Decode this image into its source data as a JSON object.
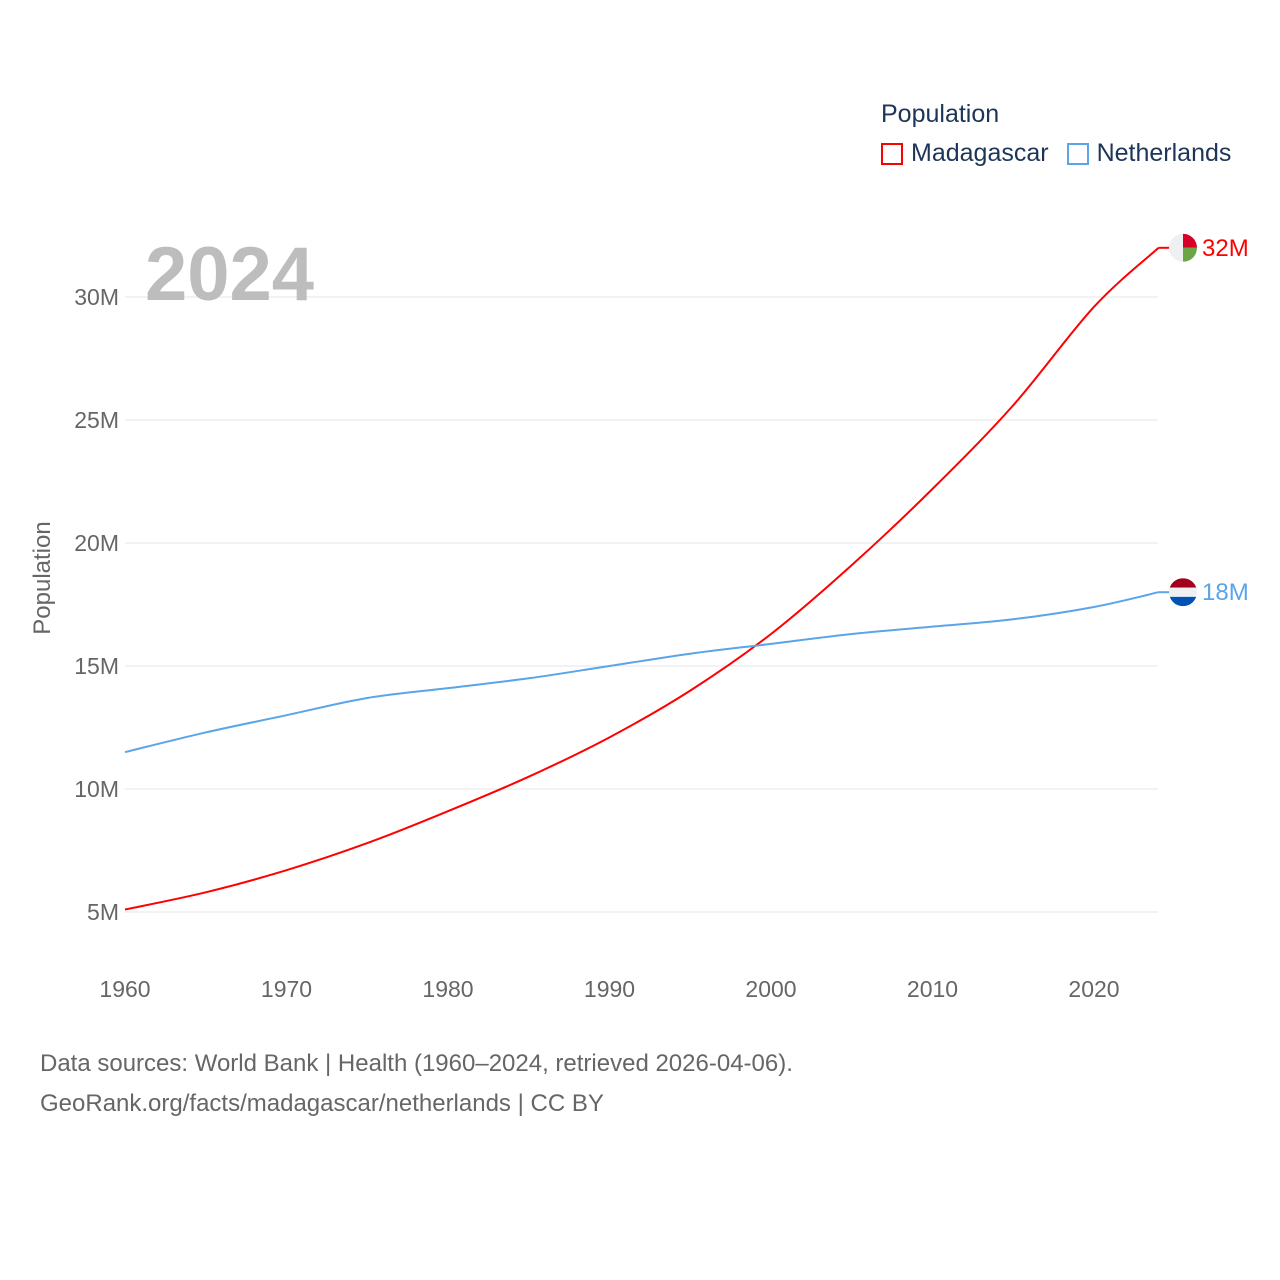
{
  "chart_data": {
    "type": "line",
    "title": "Population",
    "ylabel": "Population",
    "xlabel": "",
    "year_label": "2024",
    "xlim": [
      1960,
      2024
    ],
    "ylim": [
      3000000,
      33000000
    ],
    "x_ticks": [
      1960,
      1970,
      1980,
      1990,
      2000,
      2010,
      2020
    ],
    "y_ticks": [
      {
        "v": 5000000,
        "label": "5M"
      },
      {
        "v": 10000000,
        "label": "10M"
      },
      {
        "v": 15000000,
        "label": "15M"
      },
      {
        "v": 20000000,
        "label": "20M"
      },
      {
        "v": 25000000,
        "label": "25M"
      },
      {
        "v": 30000000,
        "label": "30M"
      }
    ],
    "grid": true,
    "legend_position": "top-right",
    "x": [
      1960,
      1965,
      1970,
      1975,
      1980,
      1985,
      1990,
      1995,
      2000,
      2005,
      2010,
      2015,
      2020,
      2024
    ],
    "series": [
      {
        "name": "Madagascar",
        "color": "#ff0000",
        "end_label": "32M",
        "flag": "madagascar",
        "values": [
          5.1,
          5.8,
          6.7,
          7.8,
          9.1,
          10.5,
          12.1,
          14.0,
          16.3,
          19.1,
          22.2,
          25.6,
          29.6,
          32.0
        ]
      },
      {
        "name": "Netherlands",
        "color": "#5aa5e8",
        "end_label": "18M",
        "flag": "netherlands",
        "values": [
          11.5,
          12.3,
          13.0,
          13.7,
          14.1,
          14.5,
          15.0,
          15.5,
          15.9,
          16.3,
          16.6,
          16.9,
          17.4,
          18.0
        ]
      }
    ],
    "value_unit": "millions"
  },
  "footer": {
    "line1": "Data sources: World Bank | Health (1960–2024, retrieved 2026-04-06).",
    "line2": "GeoRank.org/facts/madagascar/netherlands | CC BY"
  }
}
